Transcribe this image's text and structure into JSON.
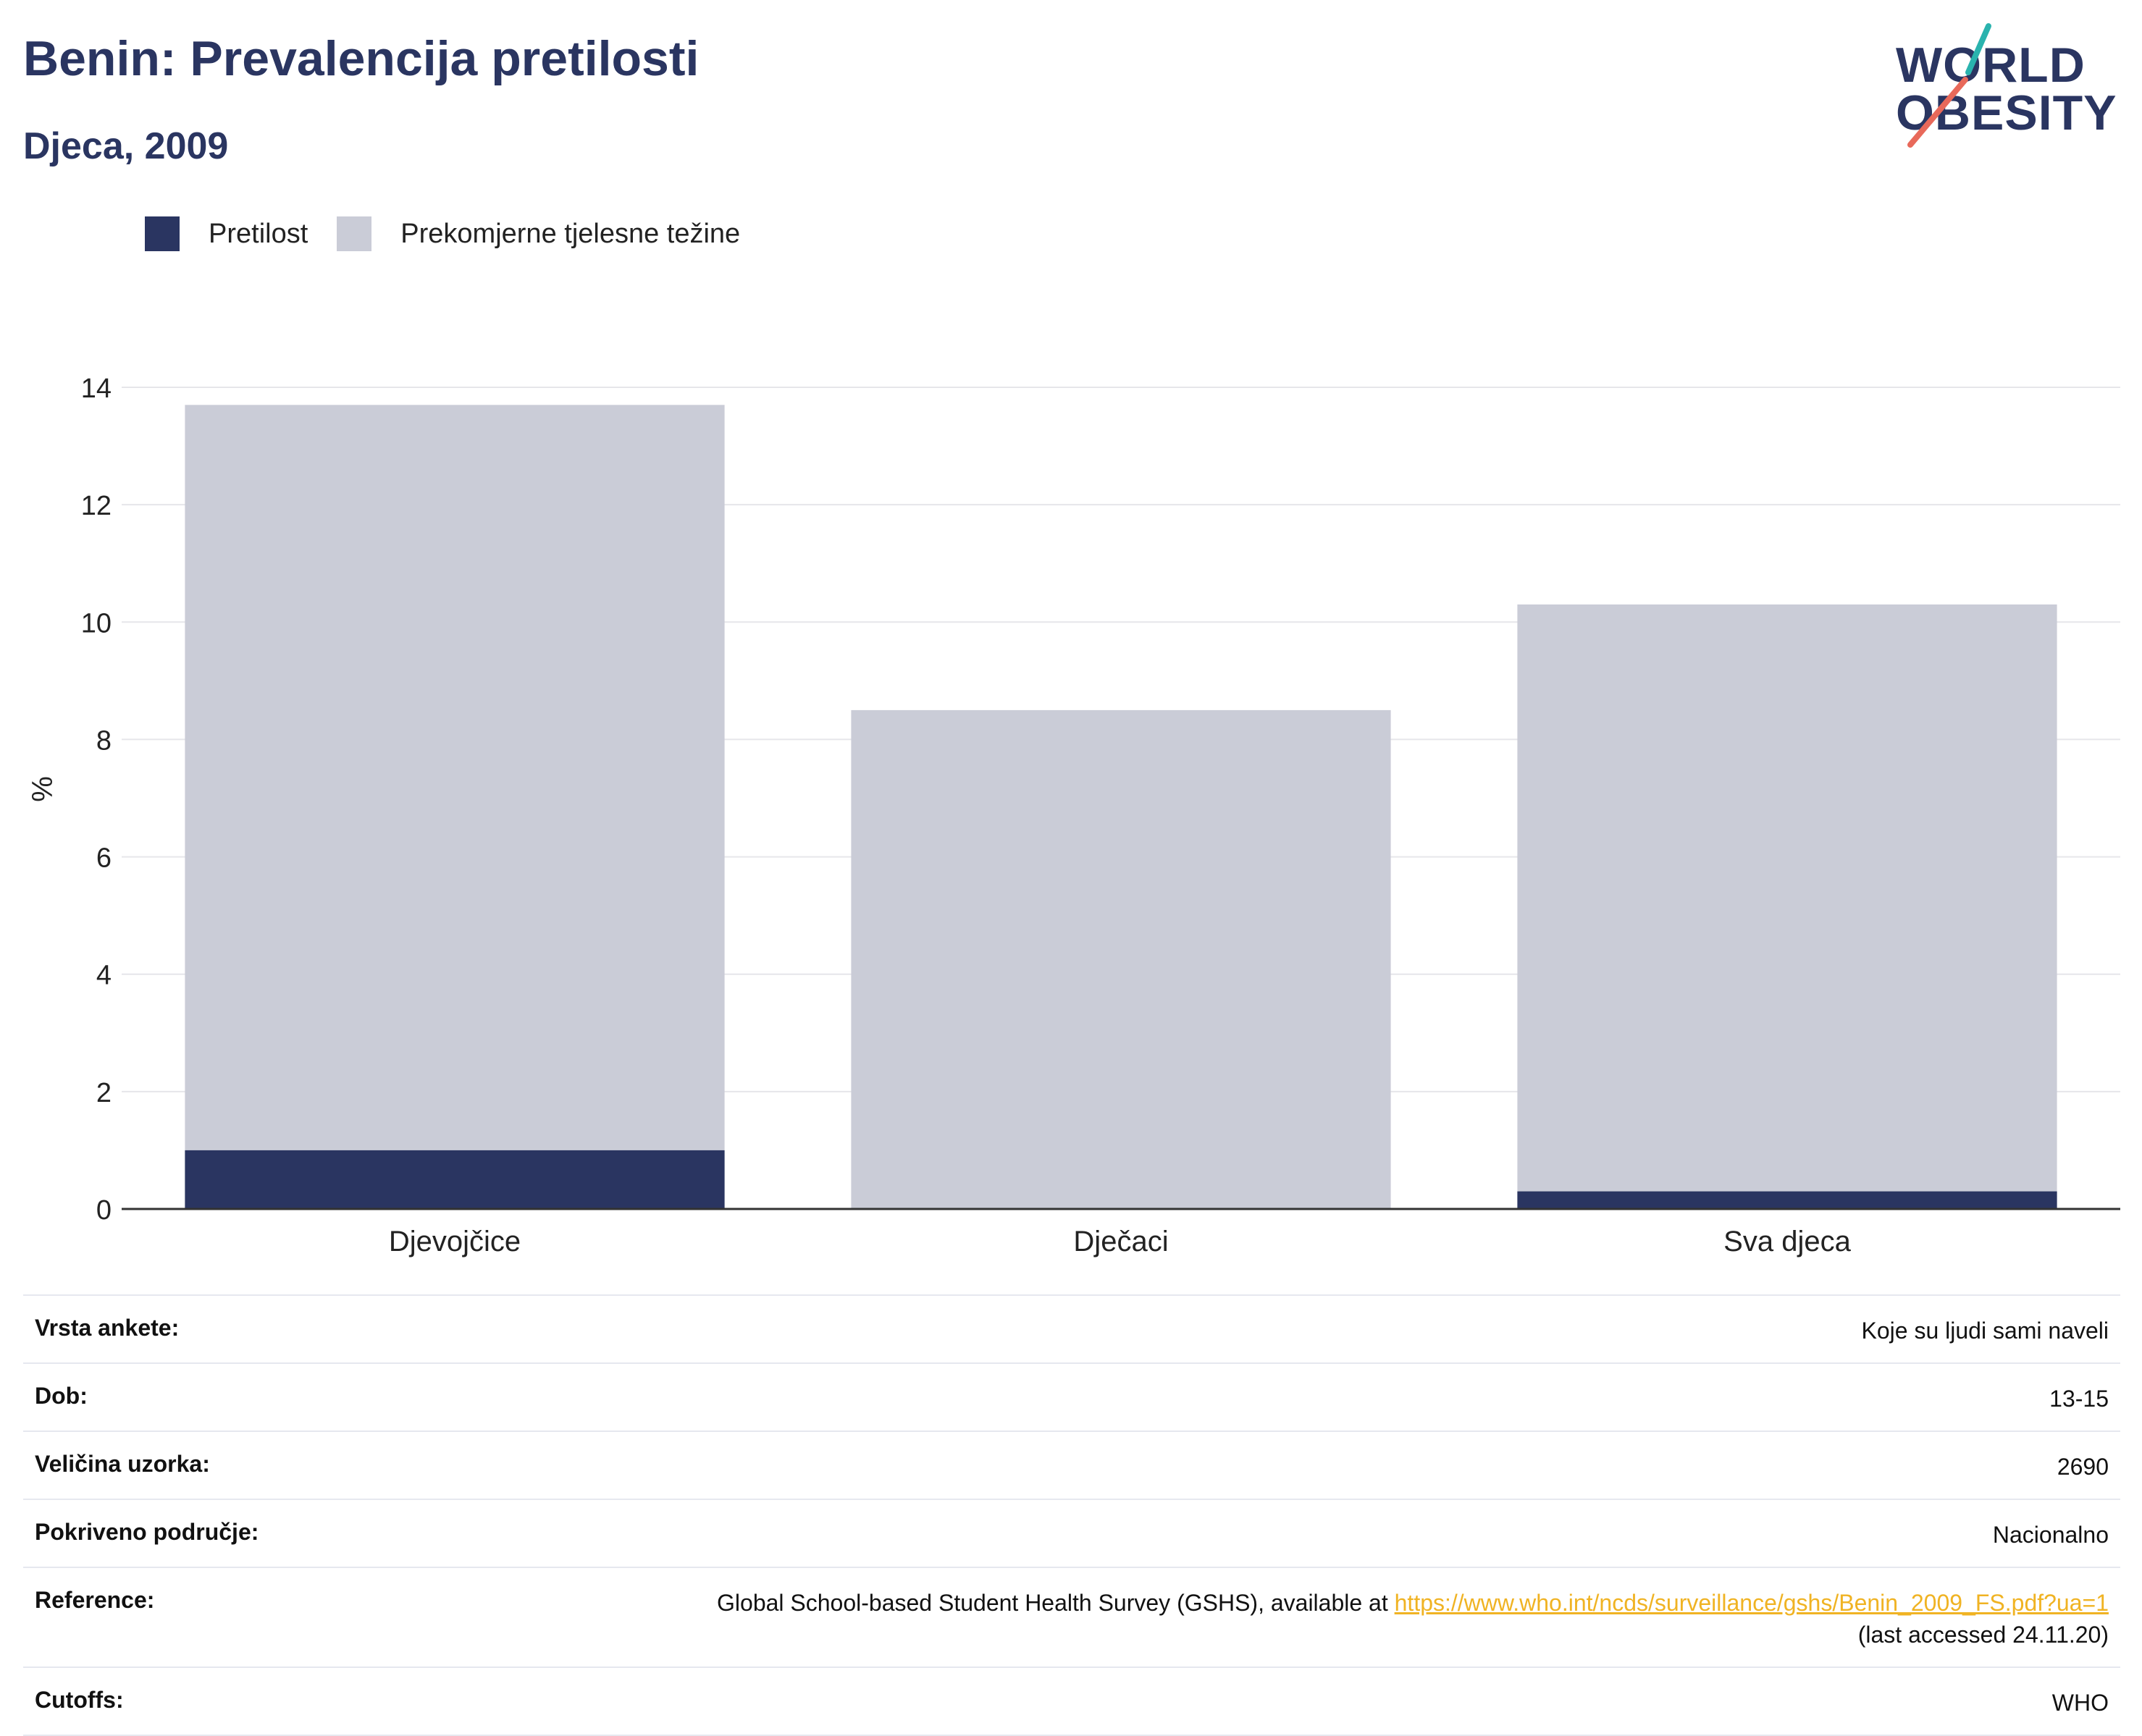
{
  "header": {
    "title": "Benin: Prevalencija pretilosti",
    "subtitle": "Djeca, 2009"
  },
  "logo": {
    "line1": "WORLD",
    "line2": "OBESITY",
    "colors": {
      "navy": "#2a3561",
      "teal": "#2ab3ae",
      "coral": "#e8695a"
    }
  },
  "legend": [
    {
      "label": "Pretilost",
      "color": "#2a3561"
    },
    {
      "label": "Prekomjerne tjelesne težine",
      "color": "#caccd7"
    }
  ],
  "chart_data": {
    "type": "bar",
    "stacking": "overlay",
    "categories": [
      "Djevojčice",
      "Dječaci",
      "Sva djeca"
    ],
    "series": [
      {
        "name": "Prekomjerne tjelesne težine",
        "values": [
          13.7,
          8.5,
          10.3
        ],
        "color": "#caccd7"
      },
      {
        "name": "Pretilost",
        "values": [
          1.0,
          0,
          0.3
        ],
        "color": "#2a3561"
      }
    ],
    "ylabel": "%",
    "ylim": [
      0,
      14
    ],
    "yticks": [
      0,
      2,
      4,
      6,
      8,
      10,
      12,
      14
    ],
    "grid": true,
    "legend_position": "top-left"
  },
  "meta": {
    "survey_type": {
      "label": "Vrsta ankete:",
      "value": "Koje su ljudi sami naveli"
    },
    "age": {
      "label": "Dob:",
      "value": "13-15"
    },
    "sample": {
      "label": "Veličina uzorka:",
      "value": "2690"
    },
    "area": {
      "label": "Pokriveno područje:",
      "value": "Nacionalno"
    },
    "reference": {
      "label": "Reference:",
      "text": "Global School-based Student Health Survey (GSHS), available at ",
      "link": "https://www.who.int/ncds/surveillance/gshs/Benin_2009_FS.pdf?ua=1",
      "accessed": "(last accessed 24.11.20)"
    },
    "cutoffs": {
      "label": "Cutoffs:",
      "value": "WHO"
    }
  }
}
